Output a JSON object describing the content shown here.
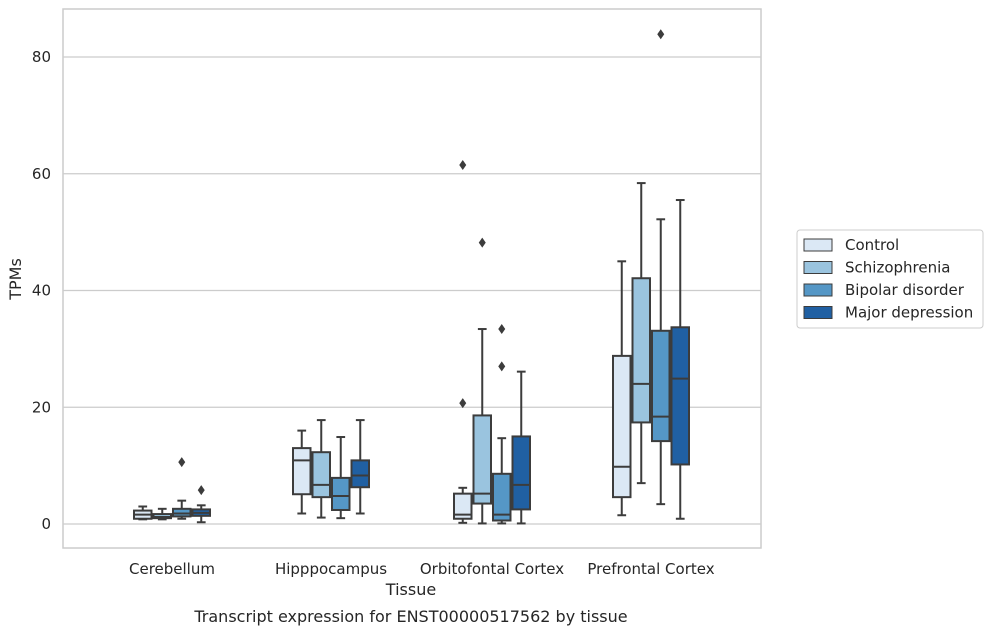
{
  "chart_data": {
    "type": "boxplot",
    "xlabel": "Tissue",
    "ylabel": "TPMs",
    "caption": "Transcript expression for ENST00000517562 by tissue",
    "ylim": [
      -4,
      88
    ],
    "yticks": [
      0,
      20,
      40,
      60,
      80
    ],
    "ytick_labels": [
      "0",
      "20",
      "40",
      "60",
      "80"
    ],
    "grid": "horizontal",
    "legend_position": "right",
    "categories": [
      "Cerebellum",
      "Hipppocampus",
      "Orbitofontal Cortex",
      "Prefrontal Cortex"
    ],
    "series": [
      {
        "name": "Control",
        "color": "#dbe8f5",
        "boxes": [
          {
            "whisker_low": 0.8,
            "q1": 0.9,
            "median": 1.6,
            "q3": 2.3,
            "whisker_high": 3.0,
            "outliers": []
          },
          {
            "whisker_low": 1.8,
            "q1": 5.1,
            "median": 10.9,
            "q3": 13.0,
            "whisker_high": 16.0,
            "outliers": []
          },
          {
            "whisker_low": 0.2,
            "q1": 0.9,
            "median": 1.6,
            "q3": 5.2,
            "whisker_high": 6.2,
            "outliers": [
              20.7,
              61.5
            ]
          },
          {
            "whisker_low": 1.5,
            "q1": 4.6,
            "median": 9.8,
            "q3": 28.8,
            "whisker_high": 45.0,
            "outliers": []
          }
        ]
      },
      {
        "name": "Schizophrenia",
        "color": "#9ac4df",
        "boxes": [
          {
            "whisker_low": 0.8,
            "q1": 1.0,
            "median": 1.2,
            "q3": 1.7,
            "whisker_high": 2.6,
            "outliers": []
          },
          {
            "whisker_low": 1.1,
            "q1": 4.6,
            "median": 6.7,
            "q3": 12.3,
            "whisker_high": 17.8,
            "outliers": []
          },
          {
            "whisker_low": 0.1,
            "q1": 3.5,
            "median": 5.2,
            "q3": 18.6,
            "whisker_high": 33.4,
            "outliers": [
              48.2
            ]
          },
          {
            "whisker_low": 7.0,
            "q1": 17.4,
            "median": 24.0,
            "q3": 42.1,
            "whisker_high": 58.4,
            "outliers": []
          }
        ]
      },
      {
        "name": "Bipolar disorder",
        "color": "#5597c6",
        "boxes": [
          {
            "whisker_low": 0.9,
            "q1": 1.3,
            "median": 1.8,
            "q3": 2.6,
            "whisker_high": 4.0,
            "outliers": [
              10.6
            ]
          },
          {
            "whisker_low": 1.0,
            "q1": 2.4,
            "median": 4.8,
            "q3": 7.9,
            "whisker_high": 14.9,
            "outliers": []
          },
          {
            "whisker_low": 0.1,
            "q1": 0.6,
            "median": 1.6,
            "q3": 8.6,
            "whisker_high": 14.7,
            "outliers": [
              27.0,
              33.4
            ]
          },
          {
            "whisker_low": 3.4,
            "q1": 14.2,
            "median": 18.4,
            "q3": 33.1,
            "whisker_high": 52.2,
            "outliers": [
              83.9
            ]
          }
        ]
      },
      {
        "name": "Major depression",
        "color": "#2060a3",
        "boxes": [
          {
            "whisker_low": 0.3,
            "q1": 1.4,
            "median": 1.9,
            "q3": 2.5,
            "whisker_high": 3.2,
            "outliers": [
              5.8
            ]
          },
          {
            "whisker_low": 1.8,
            "q1": 6.3,
            "median": 8.3,
            "q3": 10.9,
            "whisker_high": 17.8,
            "outliers": []
          },
          {
            "whisker_low": 0.1,
            "q1": 2.5,
            "median": 6.7,
            "q3": 15.0,
            "whisker_high": 26.1,
            "outliers": []
          },
          {
            "whisker_low": 0.9,
            "q1": 10.2,
            "median": 24.9,
            "q3": 33.7,
            "whisker_high": 55.5,
            "outliers": []
          }
        ]
      }
    ]
  }
}
